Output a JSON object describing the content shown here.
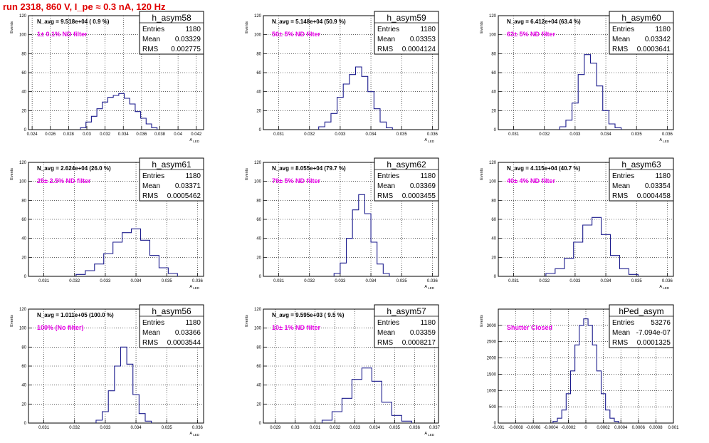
{
  "page": {
    "title": "run 2318,   860 V, I_pe ≈ 0.3 nA, 120 Hz"
  },
  "colors": {
    "title": "#e00000",
    "histogram": "#1a1a8c",
    "annotation": "#e600e6"
  },
  "chart_data": [
    {
      "type": "histogram",
      "name": "h_asym58",
      "note": "N_avg = 9.518e+04 ( 0.9 %)",
      "filter": "1± 0.1% ND filter",
      "stats": {
        "entries": "1180",
        "mean": "0.03329",
        "rms": "0.002775"
      },
      "xlabel": "A_LED",
      "ylabel": "Events",
      "xlim": [
        0.0236,
        0.0428
      ],
      "ylim": [
        0,
        120
      ],
      "grid": true,
      "xticks": [
        0.024,
        0.026,
        0.028,
        0.03,
        0.032,
        0.034,
        0.036,
        0.038,
        0.04,
        0.042
      ],
      "yticks": [
        0,
        20,
        40,
        60,
        80,
        100,
        120
      ],
      "x": [
        0.0296,
        0.0302,
        0.0308,
        0.0314,
        0.032,
        0.0326,
        0.0332,
        0.0338,
        0.0344,
        0.035,
        0.0356,
        0.0362,
        0.0368,
        0.0374
      ],
      "values": [
        2,
        8,
        14,
        22,
        29,
        34,
        36,
        38,
        33,
        27,
        19,
        12,
        6,
        2
      ]
    },
    {
      "type": "histogram",
      "name": "h_asym59",
      "note": "N_avg = 5.148e+04 (50.9 %)",
      "filter": "50± 5% ND filter",
      "stats": {
        "entries": "1180",
        "mean": "0.03353",
        "rms": "0.0004124"
      },
      "xlabel": "A_LED",
      "ylabel": "Events",
      "xlim": [
        0.0305,
        0.0362
      ],
      "ylim": [
        0,
        120
      ],
      "grid": true,
      "xticks": [
        0.031,
        0.032,
        0.033,
        0.034,
        0.035,
        0.036
      ],
      "yticks": [
        0,
        20,
        40,
        60,
        80,
        100,
        120
      ],
      "x": [
        0.0324,
        0.0326,
        0.0328,
        0.033,
        0.0332,
        0.0334,
        0.0336,
        0.0338,
        0.034,
        0.0342,
        0.0344,
        0.0346
      ],
      "values": [
        3,
        8,
        17,
        34,
        48,
        58,
        66,
        56,
        40,
        22,
        8,
        2
      ]
    },
    {
      "type": "histogram",
      "name": "h_asym60",
      "note": "N_avg = 6.412e+04 (63.4 %)",
      "filter": "63± 5% ND filter",
      "stats": {
        "entries": "1180",
        "mean": "0.03342",
        "rms": "0.0003641"
      },
      "xlabel": "A_LED",
      "ylabel": "Events",
      "xlim": [
        0.0305,
        0.0362
      ],
      "ylim": [
        0,
        120
      ],
      "grid": true,
      "xticks": [
        0.031,
        0.032,
        0.033,
        0.034,
        0.035,
        0.036
      ],
      "yticks": [
        0,
        20,
        40,
        60,
        80,
        100,
        120
      ],
      "x": [
        0.0326,
        0.0328,
        0.033,
        0.0332,
        0.0334,
        0.0336,
        0.0338,
        0.034,
        0.0342,
        0.0344
      ],
      "values": [
        3,
        10,
        28,
        58,
        79,
        70,
        46,
        20,
        6,
        2
      ]
    },
    {
      "type": "histogram",
      "name": "h_asym61",
      "note": "N_avg = 2.624e+04 (26.0 %)",
      "filter": "25± 2.5% ND filter",
      "stats": {
        "entries": "1180",
        "mean": "0.03371",
        "rms": "0.0005462"
      },
      "xlabel": "A_LED",
      "ylabel": "Events",
      "xlim": [
        0.0305,
        0.0362
      ],
      "ylim": [
        0,
        120
      ],
      "grid": true,
      "xticks": [
        0.031,
        0.032,
        0.033,
        0.034,
        0.035,
        0.036
      ],
      "yticks": [
        0,
        20,
        40,
        60,
        80,
        100,
        120
      ],
      "x": [
        0.0322,
        0.0325,
        0.0328,
        0.0331,
        0.0334,
        0.0337,
        0.034,
        0.0343,
        0.0346,
        0.0349,
        0.0352
      ],
      "values": [
        2,
        6,
        13,
        24,
        36,
        46,
        50,
        38,
        22,
        9,
        3
      ]
    },
    {
      "type": "histogram",
      "name": "h_asym62",
      "note": "N_avg = 8.055e+04 (79.7 %)",
      "filter": "79± 5% ND filter",
      "stats": {
        "entries": "1180",
        "mean": "0.03369",
        "rms": "0.0003455"
      },
      "xlabel": "A_LED",
      "ylabel": "Events",
      "xlim": [
        0.0305,
        0.0362
      ],
      "ylim": [
        0,
        120
      ],
      "grid": true,
      "xticks": [
        0.031,
        0.032,
        0.033,
        0.034,
        0.035,
        0.036
      ],
      "yticks": [
        0,
        20,
        40,
        60,
        80,
        100,
        120
      ],
      "x": [
        0.0329,
        0.0331,
        0.0333,
        0.0335,
        0.0337,
        0.0339,
        0.0341,
        0.0343,
        0.0345
      ],
      "values": [
        3,
        14,
        40,
        70,
        86,
        66,
        36,
        13,
        3
      ]
    },
    {
      "type": "histogram",
      "name": "h_asym63",
      "note": "N_avg = 4.115e+04 (40.7 %)",
      "filter": "40± 4% ND filter",
      "stats": {
        "entries": "1180",
        "mean": "0.03354",
        "rms": "0.0004458"
      },
      "xlabel": "A_LED",
      "ylabel": "Events",
      "xlim": [
        0.0305,
        0.0362
      ],
      "ylim": [
        0,
        120
      ],
      "grid": true,
      "xticks": [
        0.031,
        0.032,
        0.033,
        0.034,
        0.035,
        0.036
      ],
      "yticks": [
        0,
        20,
        40,
        60,
        80,
        100,
        120
      ],
      "x": [
        0.0322,
        0.0325,
        0.0328,
        0.0331,
        0.0334,
        0.0337,
        0.034,
        0.0343,
        0.0346,
        0.0349
      ],
      "values": [
        3,
        8,
        19,
        36,
        54,
        62,
        44,
        22,
        8,
        2
      ]
    },
    {
      "type": "histogram",
      "name": "h_asym56",
      "note": "N_avg = 1.011e+05 (100.0 %)",
      "filter": "100% (No filter)",
      "stats": {
        "entries": "1180",
        "mean": "0.03366",
        "rms": "0.0003544"
      },
      "xlabel": "A_LED",
      "ylabel": "Events",
      "xlim": [
        0.0305,
        0.0362
      ],
      "ylim": [
        0,
        120
      ],
      "grid": true,
      "xticks": [
        0.031,
        0.032,
        0.033,
        0.034,
        0.035,
        0.036
      ],
      "yticks": [
        0,
        20,
        40,
        60,
        80,
        100,
        120
      ],
      "x": [
        0.0328,
        0.033,
        0.0332,
        0.0334,
        0.0336,
        0.0338,
        0.034,
        0.0342,
        0.0344
      ],
      "values": [
        3,
        12,
        34,
        60,
        80,
        62,
        30,
        10,
        2
      ]
    },
    {
      "type": "histogram",
      "name": "h_asym57",
      "note": "N_avg = 9.595e+03 ( 9.5 %)",
      "filter": "10± 1% ND filter",
      "stats": {
        "entries": "1180",
        "mean": "0.03359",
        "rms": "0.0008217"
      },
      "xlabel": "A_LED",
      "ylabel": "Events",
      "xlim": [
        0.0284,
        0.0372
      ],
      "ylim": [
        0,
        120
      ],
      "grid": true,
      "xticks": [
        0.029,
        0.03,
        0.031,
        0.032,
        0.033,
        0.034,
        0.035,
        0.036,
        0.037
      ],
      "yticks": [
        0,
        20,
        40,
        60,
        80,
        100,
        120
      ],
      "x": [
        0.0316,
        0.0321,
        0.0326,
        0.0331,
        0.0336,
        0.0341,
        0.0346,
        0.0351,
        0.0356
      ],
      "values": [
        3,
        12,
        26,
        46,
        58,
        44,
        22,
        8,
        2
      ]
    },
    {
      "type": "histogram",
      "name": "hPed_asym",
      "note": "",
      "filter": "Shutter Closed",
      "stats": {
        "entries": "53276",
        "mean": "-7.094e-07",
        "rms": "0.0001325"
      },
      "xlabel": "",
      "ylabel": "Events",
      "xlim": [
        -0.001,
        0.001
      ],
      "ylim": [
        0,
        3500
      ],
      "grid": true,
      "xticks": [
        -0.001,
        -0.0008,
        -0.0006,
        -0.0004,
        -0.0002,
        0,
        0.0002,
        0.0004,
        0.0006,
        0.0008,
        0.001
      ],
      "yticks": [
        0,
        500,
        1000,
        1500,
        2000,
        2500,
        3000
      ],
      "x": [
        -0.00035,
        -0.0003,
        -0.00025,
        -0.0002,
        -0.00015,
        -0.0001,
        -5e-05,
        0,
        5e-05,
        0.0001,
        0.00015,
        0.0002,
        0.00025,
        0.0003,
        0.00035
      ],
      "values": [
        50,
        150,
        400,
        900,
        1600,
        2400,
        3000,
        3200,
        3000,
        2400,
        1600,
        900,
        400,
        150,
        50
      ]
    }
  ]
}
